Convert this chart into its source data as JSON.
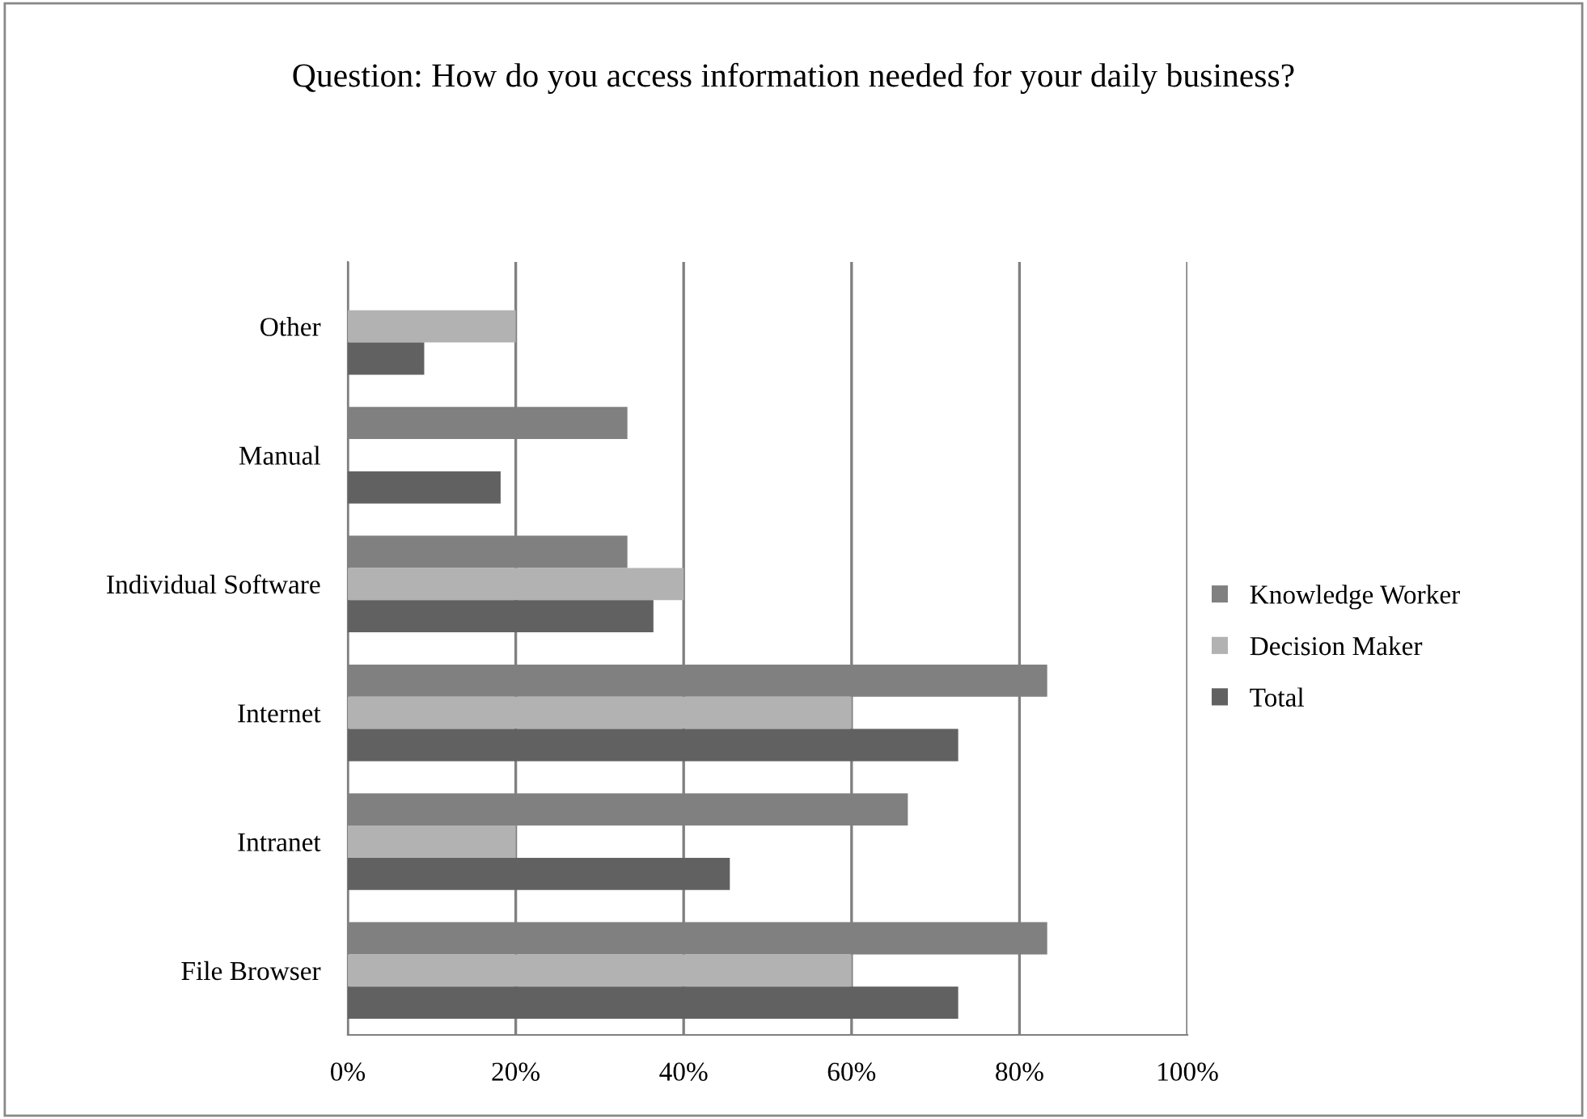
{
  "chart_data": {
    "type": "bar",
    "orientation": "horizontal",
    "title": "Question: How do you access information needed for your daily business?",
    "categories": [
      "Other",
      "Manual",
      "Individual Software",
      "Internet",
      "Intranet",
      "File Browser"
    ],
    "series": [
      {
        "name": "Knowledge Worker",
        "color": "#808080",
        "values": [
          0,
          33.3,
          33.3,
          83.3,
          66.7,
          83.3
        ]
      },
      {
        "name": "Decision Maker",
        "color": "#b2b2b2",
        "values": [
          20,
          0,
          40,
          60,
          20,
          60
        ]
      },
      {
        "name": "Total",
        "color": "#616161",
        "values": [
          9.1,
          18.2,
          36.4,
          72.7,
          45.5,
          72.7
        ]
      }
    ],
    "xlim": [
      0,
      100
    ],
    "xticks": [
      {
        "value": 0,
        "label": "0%"
      },
      {
        "value": 20,
        "label": "20%"
      },
      {
        "value": 40,
        "label": "40%"
      },
      {
        "value": 60,
        "label": "60%"
      },
      {
        "value": 80,
        "label": "80%"
      },
      {
        "value": 100,
        "label": "100%"
      }
    ],
    "grid": "x",
    "legend": "right"
  }
}
